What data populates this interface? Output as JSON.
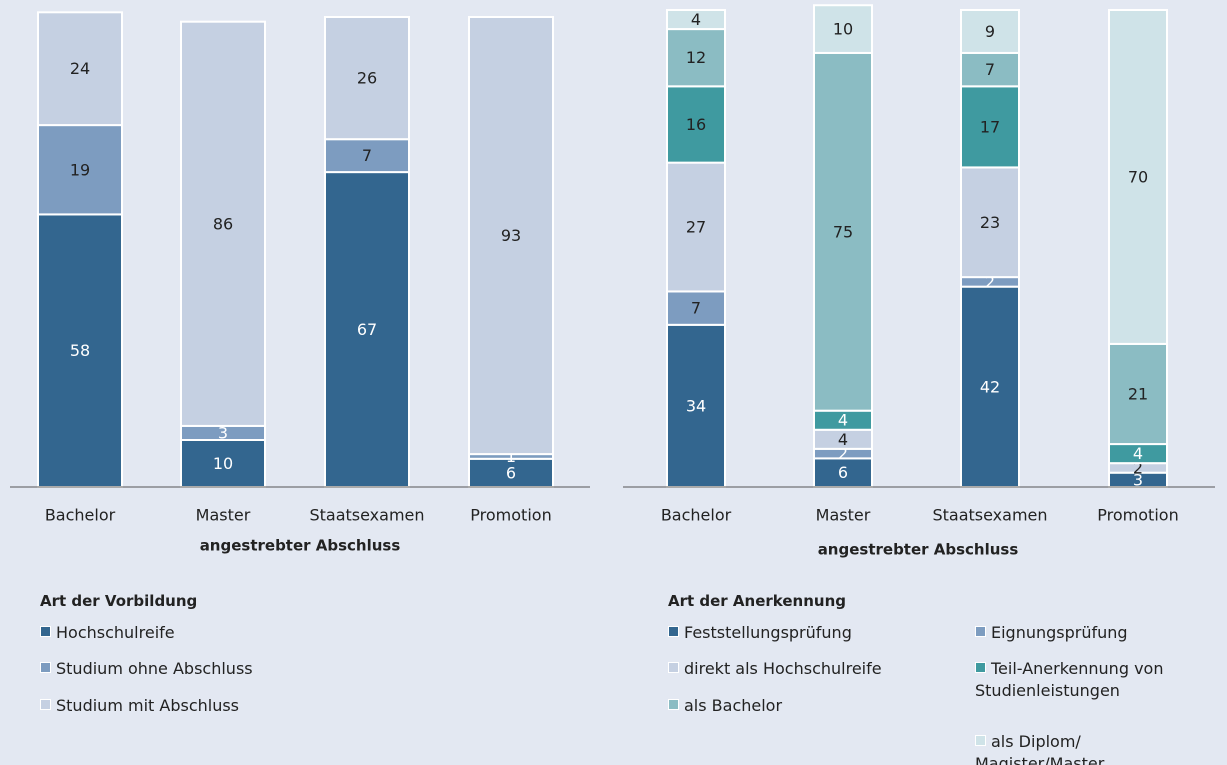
{
  "chart_data": [
    {
      "type": "bar",
      "stacked": true,
      "categories": [
        "Bachelor",
        "Master",
        "Staatsexamen",
        "Promotion"
      ],
      "x_label": "angestrebter Abschluss",
      "legend_title": "Art der Vorbildung",
      "series": [
        {
          "name": "Hochschulreife",
          "color": "#33668f",
          "values": [
            58,
            10,
            67,
            6
          ]
        },
        {
          "name": "Studium ohne Abschluss",
          "color": "#7d9cc0",
          "values": [
            19,
            3,
            7,
            1
          ]
        },
        {
          "name": "Studium mit Abschluss",
          "color": "#c5d0e2",
          "values": [
            24,
            86,
            26,
            93
          ]
        }
      ]
    },
    {
      "type": "bar",
      "stacked": true,
      "categories": [
        "Bachelor",
        "Master",
        "Staatsexamen",
        "Promotion"
      ],
      "x_label": "angestrebter Abschluss",
      "legend_title": "Art der Anerkennung",
      "series": [
        {
          "name": "Feststellungsprüfung",
          "color": "#33668f",
          "values": [
            34,
            6,
            42,
            3
          ]
        },
        {
          "name": "Eignungsprüfung",
          "color": "#7d9cc0",
          "values": [
            7,
            2,
            2,
            null
          ]
        },
        {
          "name": "direkt als Hochschulreife",
          "color": "#c5d0e2",
          "values": [
            27,
            4,
            23,
            2
          ]
        },
        {
          "name": "Teil-Anerkennung von Studienleistungen",
          "color": "#3f9aa0",
          "values": [
            16,
            4,
            17,
            4
          ]
        },
        {
          "name": "als Bachelor",
          "color": "#8bbcc3",
          "values": [
            12,
            75,
            7,
            21
          ]
        },
        {
          "name": "als Diplom/Magister/Master",
          "color": "#cfe3e8",
          "values": [
            4,
            10,
            9,
            70
          ]
        }
      ]
    }
  ]
}
